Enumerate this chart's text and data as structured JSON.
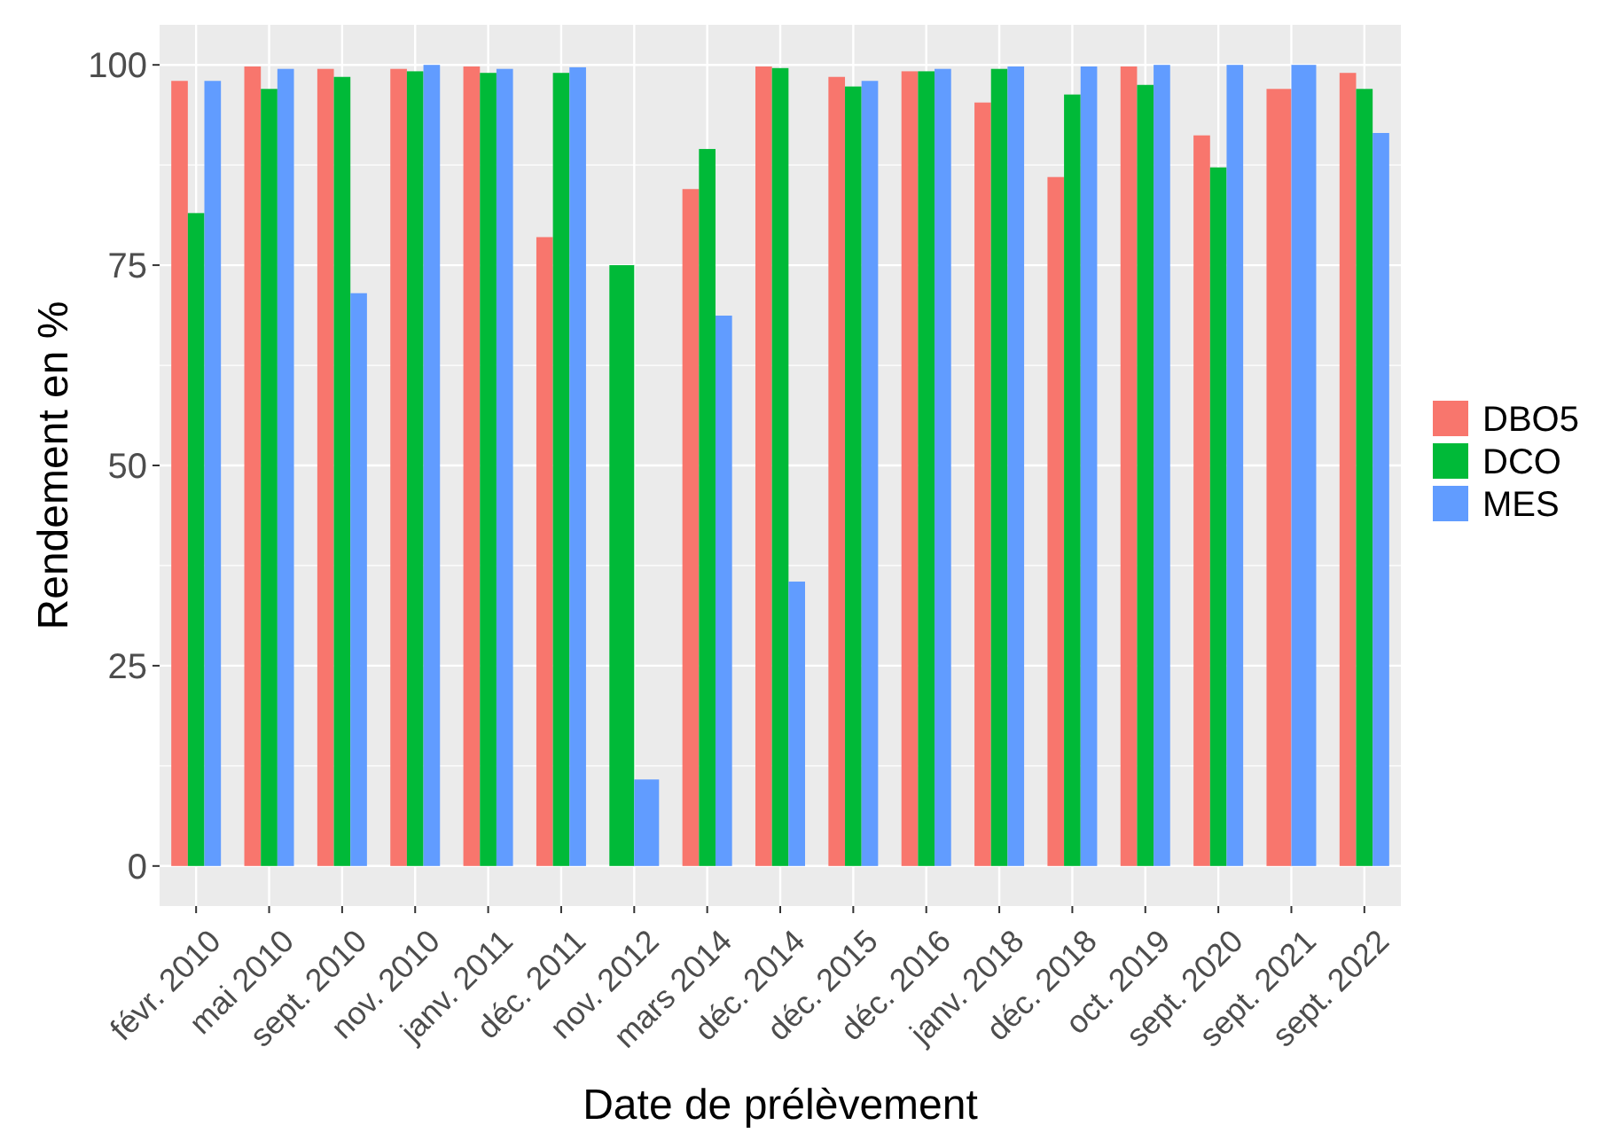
{
  "chart_data": {
    "type": "bar",
    "xlabel": "Date de prélèvement",
    "ylabel": "Rendement en %",
    "categories": [
      "févr. 2010",
      "mai 2010",
      "sept. 2010",
      "nov. 2010",
      "janv. 2011",
      "déc. 2011",
      "nov. 2012",
      "mars 2014",
      "déc. 2014",
      "déc. 2015",
      "déc. 2016",
      "janv. 2018",
      "déc. 2018",
      "oct. 2019",
      "sept. 2020",
      "sept. 2021",
      "sept. 2022"
    ],
    "series": [
      {
        "name": "DBO5",
        "color": "#f8766d",
        "values": [
          98,
          99.8,
          99.5,
          99.5,
          99.8,
          78.5,
          null,
          84.5,
          99.8,
          98.5,
          99.2,
          95.3,
          86,
          99.8,
          91.2,
          97,
          99
        ]
      },
      {
        "name": "DCO",
        "color": "#00ba38",
        "values": [
          81.5,
          97,
          98.5,
          99.2,
          99,
          99,
          75,
          89.5,
          99.6,
          97.3,
          99.2,
          99.5,
          96.3,
          97.5,
          87.2,
          null,
          97
        ]
      },
      {
        "name": "MES",
        "color": "#619cff",
        "values": [
          98,
          99.5,
          71.5,
          100,
          99.5,
          99.7,
          10.8,
          68.7,
          35.5,
          98,
          99.5,
          99.8,
          99.8,
          100,
          100,
          100,
          91.5
        ]
      }
    ],
    "ylim": [
      -5,
      105
    ],
    "yticks": [
      0,
      25,
      50,
      75,
      100
    ],
    "grid": true,
    "legend": "right"
  }
}
